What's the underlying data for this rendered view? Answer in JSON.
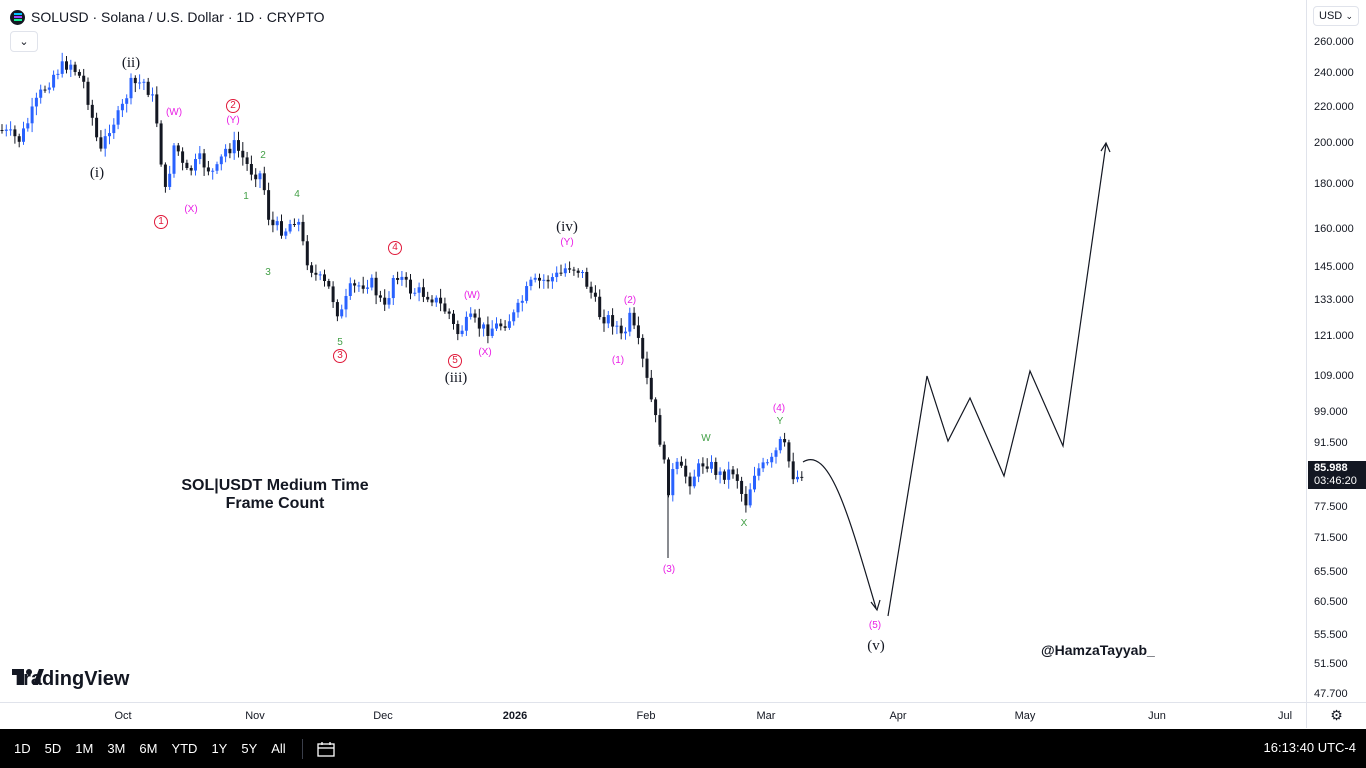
{
  "symbol": {
    "title": "SOLUSD · Solana / U.S. Dollar · 1D · CRYPTO",
    "logo_icon": "solana-logo-icon"
  },
  "price_axis": {
    "currency": "USD",
    "ticks": [
      "260.000",
      "240.000",
      "220.000",
      "200.000",
      "180.000",
      "160.000",
      "145.000",
      "133.000",
      "121.000",
      "109.000",
      "99.000",
      "91.500",
      "85.988",
      "77.500",
      "71.500",
      "65.500",
      "60.500",
      "55.500",
      "51.500",
      "47.700"
    ],
    "current_price": "85.988",
    "countdown": "03:46:20"
  },
  "time_axis": {
    "ticks": [
      {
        "label": "Oct",
        "bold": false
      },
      {
        "label": "Nov",
        "bold": false
      },
      {
        "label": "Dec",
        "bold": false
      },
      {
        "label": "2026",
        "bold": true
      },
      {
        "label": "Feb",
        "bold": false
      },
      {
        "label": "Mar",
        "bold": false
      },
      {
        "label": "Apr",
        "bold": false
      },
      {
        "label": "May",
        "bold": false
      },
      {
        "label": "Jun",
        "bold": false
      },
      {
        "label": "Jul",
        "bold": false
      }
    ]
  },
  "annotation": {
    "line1": "SOL|USDT Medium Time",
    "line2": "Frame Count",
    "handle": "@HamzaTayyab_"
  },
  "wave_labels": {
    "black": [
      "(i)",
      "(ii)",
      "(iii)",
      "(iv)",
      "(v)"
    ],
    "red": [
      "1",
      "2",
      "3",
      "4",
      "5"
    ],
    "magenta": [
      "(W)",
      "(X)",
      "(Y)",
      "(W)",
      "(X)",
      "(Y)",
      "(1)",
      "(2)",
      "(3)",
      "(4)",
      "(5)"
    ],
    "green": [
      "1",
      "2",
      "3",
      "4",
      "5",
      "W",
      "X",
      "Y"
    ]
  },
  "brand": {
    "name": "TradingView"
  },
  "bottom_bar": {
    "ranges": [
      "1D",
      "5D",
      "1M",
      "3M",
      "6M",
      "YTD",
      "1Y",
      "5Y",
      "All"
    ],
    "clock": "16:13:40 UTC-4"
  },
  "colors": {
    "bull_candle": "#2962ff",
    "bear_candle": "#131722",
    "label_magenta": "#e91ee5",
    "label_green": "#43a047",
    "label_red": "#e0193a"
  }
}
